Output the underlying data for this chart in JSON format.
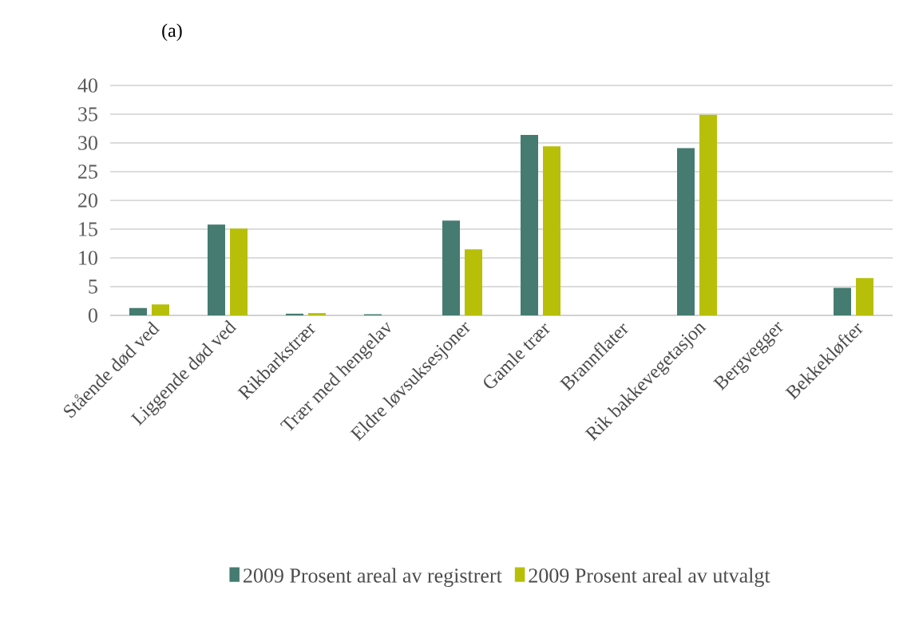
{
  "chart_data": {
    "type": "bar",
    "title": "(a)",
    "categories": [
      "Stående død ved",
      "Liggende død ved",
      "Rikbarkstrær",
      "Trær med hengelav",
      "Eldre løvsuksesjoner",
      "Gamle trær",
      "Brannflater",
      "Rik bakkevegetasjon",
      "Bergvegger",
      "Bekkekløfter"
    ],
    "series": [
      {
        "name": "2009 Prosent areal av registrert",
        "color": "#457b71",
        "values": [
          1.3,
          15.8,
          0.3,
          0.2,
          16.5,
          31.4,
          0,
          29.1,
          0,
          4.8
        ]
      },
      {
        "name": "2009 Prosent areal av utvalgt",
        "color": "#b7bf08",
        "values": [
          1.9,
          15.1,
          0.4,
          0,
          11.5,
          29.4,
          0,
          34.9,
          0,
          6.5
        ]
      }
    ],
    "ylim": [
      0,
      40
    ],
    "yticks": [
      0,
      5,
      10,
      15,
      20,
      25,
      30,
      35,
      40
    ],
    "grid": "y",
    "legend": "bottom"
  }
}
